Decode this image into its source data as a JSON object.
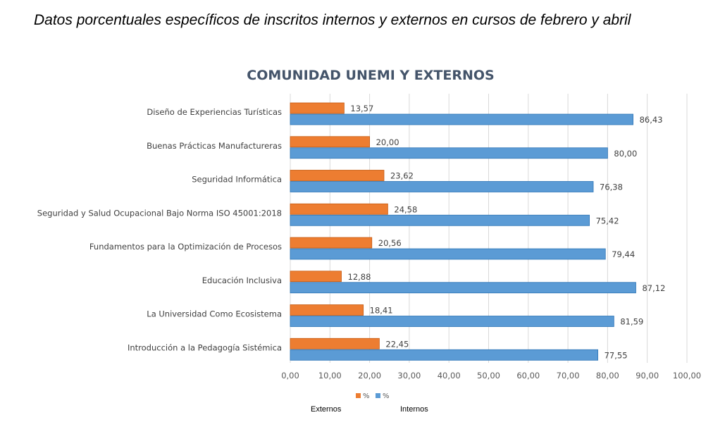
{
  "caption": "Datos porcentuales específicos de inscritos internos y externos en cursos de febrero y abril",
  "legend_notes": {
    "externos": "Externos",
    "internos": "Internos"
  },
  "chart_data": {
    "type": "bar",
    "orientation": "horizontal",
    "title": "COMUNIDAD UNEMI Y EXTERNOS",
    "xlabel": "",
    "ylabel": "",
    "xlim": [
      0,
      100
    ],
    "tick_values": [
      0,
      10,
      20,
      30,
      40,
      50,
      60,
      70,
      80,
      90,
      100
    ],
    "tick_labels": [
      "0,00",
      "10,00",
      "20,00",
      "30,00",
      "40,00",
      "50,00",
      "60,00",
      "70,00",
      "80,00",
      "90,00",
      "100,00"
    ],
    "grid": "vertical",
    "legend_position": "bottom",
    "categories": [
      "Diseño de Experiencias Turísticas",
      "Buenas Prácticas Manufactureras",
      "Seguridad Informática",
      "Seguridad y Salud Ocupacional Bajo Norma ISO 45001:2018",
      "Fundamentos para la Optimización de Procesos",
      "Educación Inclusiva",
      "La Universidad Como Ecosistema",
      "Introducción a la Pedagogía Sistémica"
    ],
    "series": [
      {
        "name": "%",
        "color": "#ed7d31",
        "values": [
          13.57,
          20.0,
          23.62,
          24.58,
          20.56,
          12.88,
          18.41,
          22.45
        ],
        "labels": [
          "13,57",
          "20,00",
          "23,62",
          "24,58",
          "20,56",
          "12,88",
          "18,41",
          "22,45"
        ]
      },
      {
        "name": "%",
        "color": "#5b9bd5",
        "values": [
          86.43,
          80.0,
          76.38,
          75.42,
          79.44,
          87.12,
          81.59,
          77.55
        ],
        "labels": [
          "86,43",
          "80,00",
          "76,38",
          "75,42",
          "79,44",
          "87,12",
          "81,59",
          "77,55"
        ]
      }
    ]
  }
}
